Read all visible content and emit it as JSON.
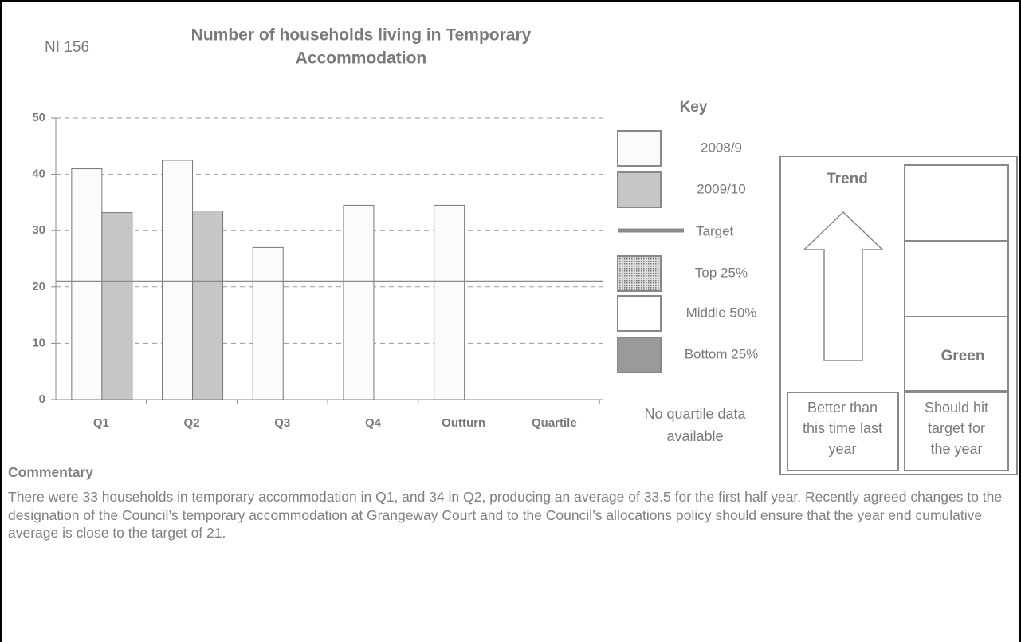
{
  "header": {
    "code": "NI 156"
  },
  "chart_data": {
    "type": "bar",
    "title_lines": [
      "Number of households living in Temporary",
      "Accommodation"
    ],
    "categories": [
      "Q1",
      "Q2",
      "Q3",
      "Q4",
      "Outturn",
      "Quartile"
    ],
    "series": [
      {
        "name": "2008/9",
        "color": "#fbfbfb",
        "values": [
          41,
          42.5,
          27,
          34.5,
          34.5,
          null
        ]
      },
      {
        "name": "2009/10",
        "color": "#c6c6c6",
        "values": [
          33.2,
          33.5,
          null,
          null,
          null,
          null
        ]
      }
    ],
    "target": {
      "name": "Target",
      "value": 21,
      "color": "#8a8a8a"
    },
    "ylim": [
      0,
      50
    ],
    "yticks": [
      0,
      10,
      20,
      30,
      40,
      50
    ],
    "grid": true
  },
  "key": {
    "title": "Key",
    "quartiles": [
      {
        "name": "Top 25%",
        "color": "dotted"
      },
      {
        "name": "Middle 50%",
        "color": "#ffffff"
      },
      {
        "name": "Bottom 25%",
        "color": "#9a9a9a"
      }
    ],
    "note_lines": [
      "No quartile data",
      "available"
    ]
  },
  "status": {
    "trend_title": "Trend",
    "rating": "Green",
    "trend_lines": [
      "Better than",
      "this time last",
      "year"
    ],
    "target_lines": [
      "Should hit",
      "target for",
      "the year"
    ]
  },
  "commentary": {
    "heading": "Commentary",
    "text": "There were 33 households in temporary accommodation in Q1, and 34 in Q2, producing an average of 33.5 for the first half year. Recently agreed changes to the designation of the Council’s temporary accommodation at Grangeway Court and to the Council’s allocations policy should ensure that the year end cumulative average is close to the target of 21."
  }
}
